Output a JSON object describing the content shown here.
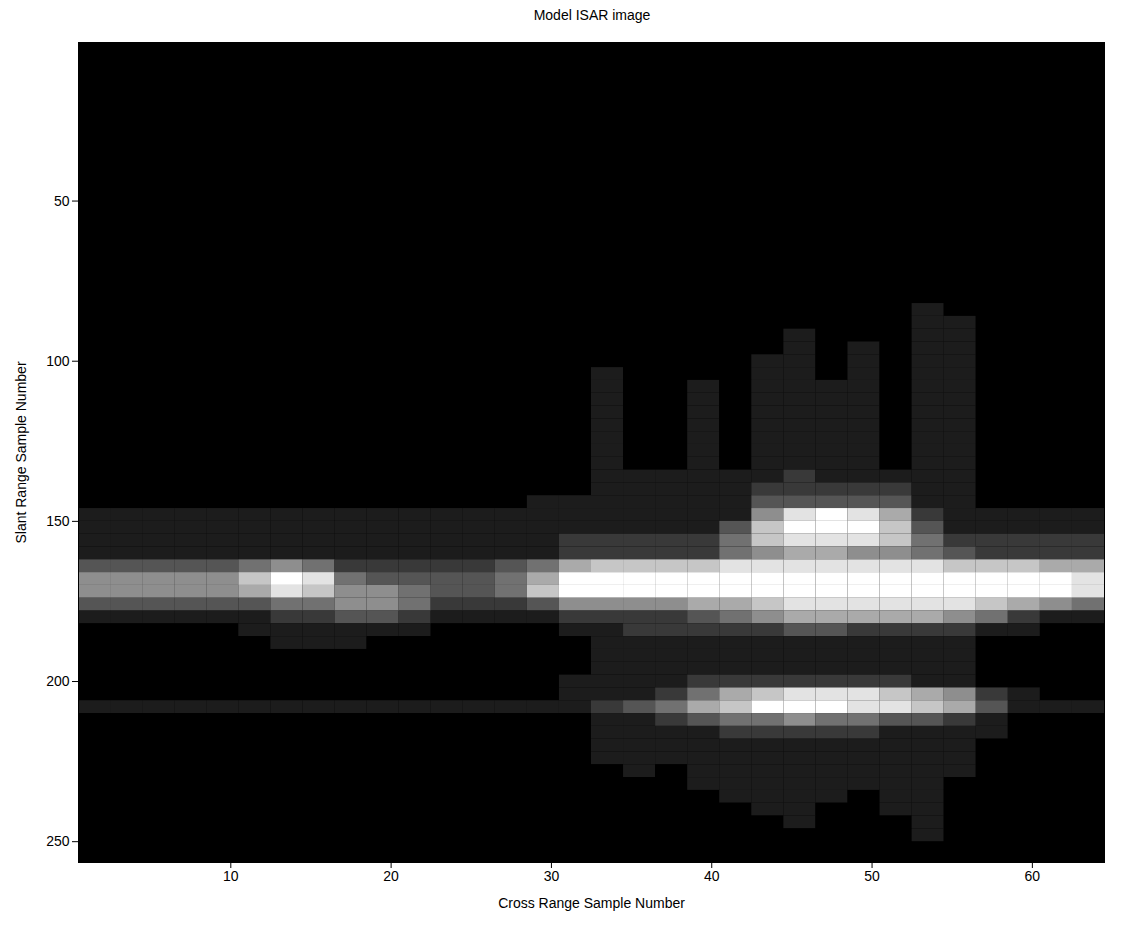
{
  "chart_data": {
    "type": "heatmap",
    "title": "Model ISAR image",
    "xlabel": "Cross Range Sample Number",
    "ylabel": "Slant Range Sample Number",
    "xlim": [
      0.5,
      64.5
    ],
    "xticks": [
      10,
      20,
      30,
      40,
      50,
      60
    ],
    "ylim": [
      0.5,
      256.5
    ],
    "yticks": [
      50,
      100,
      150,
      200,
      250
    ],
    "grid": false,
    "cells": {
      "clim": [
        0,
        9
      ],
      "x": [
        1.5,
        3.5,
        5.5,
        7.5,
        9.5,
        11.5,
        13.5,
        15.5,
        17.5,
        19.5,
        21.5,
        23.5,
        25.5,
        27.5,
        29.5,
        31.5,
        33.5,
        35.5,
        37.5,
        39.5,
        41.5,
        43.5,
        45.5,
        47.5,
        49.5,
        51.5,
        53.5,
        55.5,
        57.5,
        59.5,
        61.5,
        63.5
      ],
      "y": [
        84,
        88,
        92,
        96,
        100,
        104,
        108,
        112,
        116,
        120,
        124,
        128,
        132,
        136,
        140,
        144,
        148,
        152,
        156,
        160,
        164,
        168,
        172,
        176,
        180,
        184,
        188,
        192,
        196,
        200,
        204,
        208,
        212,
        216,
        220,
        224,
        228,
        232,
        236,
        240,
        244,
        248
      ],
      "values": [
        [
          0,
          0,
          0,
          0,
          0,
          0,
          0,
          0,
          0,
          0,
          0,
          0,
          0,
          0,
          0,
          0,
          0,
          0,
          0,
          0,
          0,
          0,
          0,
          0,
          0,
          0,
          1,
          0,
          0,
          0,
          0,
          0
        ],
        [
          0,
          0,
          0,
          0,
          0,
          0,
          0,
          0,
          0,
          0,
          0,
          0,
          0,
          0,
          0,
          0,
          0,
          0,
          0,
          0,
          0,
          0,
          0,
          0,
          0,
          0,
          1,
          1,
          0,
          0,
          0,
          0
        ],
        [
          0,
          0,
          0,
          0,
          0,
          0,
          0,
          0,
          0,
          0,
          0,
          0,
          0,
          0,
          0,
          0,
          0,
          0,
          0,
          0,
          0,
          0,
          1,
          0,
          0,
          0,
          1,
          1,
          0,
          0,
          0,
          0
        ],
        [
          0,
          0,
          0,
          0,
          0,
          0,
          0,
          0,
          0,
          0,
          0,
          0,
          0,
          0,
          0,
          0,
          0,
          0,
          0,
          0,
          0,
          0,
          1,
          0,
          1,
          0,
          1,
          1,
          0,
          0,
          0,
          0
        ],
        [
          0,
          0,
          0,
          0,
          0,
          0,
          0,
          0,
          0,
          0,
          0,
          0,
          0,
          0,
          0,
          0,
          0,
          0,
          0,
          0,
          0,
          1,
          1,
          0,
          1,
          0,
          1,
          1,
          0,
          0,
          0,
          0
        ],
        [
          0,
          0,
          0,
          0,
          0,
          0,
          0,
          0,
          0,
          0,
          0,
          0,
          0,
          0,
          0,
          0,
          1,
          0,
          0,
          0,
          0,
          1,
          1,
          0,
          1,
          0,
          1,
          1,
          0,
          0,
          0,
          0
        ],
        [
          0,
          0,
          0,
          0,
          0,
          0,
          0,
          0,
          0,
          0,
          0,
          0,
          0,
          0,
          0,
          0,
          1,
          0,
          0,
          1,
          0,
          1,
          1,
          1,
          1,
          0,
          1,
          1,
          0,
          0,
          0,
          0
        ],
        [
          0,
          0,
          0,
          0,
          0,
          0,
          0,
          0,
          0,
          0,
          0,
          0,
          0,
          0,
          0,
          0,
          1,
          0,
          0,
          1,
          0,
          1,
          1,
          1,
          1,
          0,
          1,
          1,
          0,
          0,
          0,
          0
        ],
        [
          0,
          0,
          0,
          0,
          0,
          0,
          0,
          0,
          0,
          0,
          0,
          0,
          0,
          0,
          0,
          0,
          1,
          0,
          0,
          1,
          0,
          1,
          1,
          1,
          1,
          0,
          1,
          1,
          0,
          0,
          0,
          0
        ],
        [
          0,
          0,
          0,
          0,
          0,
          0,
          0,
          0,
          0,
          0,
          0,
          0,
          0,
          0,
          0,
          0,
          1,
          0,
          0,
          1,
          0,
          1,
          1,
          1,
          1,
          0,
          1,
          1,
          0,
          0,
          0,
          0
        ],
        [
          0,
          0,
          0,
          0,
          0,
          0,
          0,
          0,
          0,
          0,
          0,
          0,
          0,
          0,
          0,
          0,
          1,
          0,
          0,
          1,
          0,
          1,
          1,
          1,
          1,
          0,
          1,
          1,
          0,
          0,
          0,
          0
        ],
        [
          0,
          0,
          0,
          0,
          0,
          0,
          0,
          0,
          0,
          0,
          0,
          0,
          0,
          0,
          0,
          0,
          1,
          0,
          0,
          1,
          0,
          1,
          1,
          1,
          1,
          0,
          1,
          1,
          0,
          0,
          0,
          0
        ],
        [
          0,
          0,
          0,
          0,
          0,
          0,
          0,
          0,
          0,
          0,
          0,
          0,
          0,
          0,
          0,
          0,
          1,
          0,
          0,
          1,
          0,
          1,
          1,
          1,
          1,
          0,
          1,
          1,
          0,
          0,
          0,
          0
        ],
        [
          0,
          0,
          0,
          0,
          0,
          0,
          0,
          0,
          0,
          0,
          0,
          0,
          0,
          0,
          0,
          0,
          1,
          1,
          1,
          1,
          1,
          1,
          2,
          1,
          1,
          1,
          1,
          1,
          0,
          0,
          0,
          0
        ],
        [
          0,
          0,
          0,
          0,
          0,
          0,
          0,
          0,
          0,
          0,
          0,
          0,
          0,
          0,
          0,
          0,
          1,
          1,
          1,
          1,
          1,
          2,
          2,
          2,
          2,
          2,
          1,
          1,
          0,
          0,
          0,
          0
        ],
        [
          0,
          0,
          0,
          0,
          0,
          0,
          0,
          0,
          0,
          0,
          0,
          0,
          0,
          0,
          1,
          1,
          1,
          1,
          1,
          1,
          1,
          3,
          3,
          3,
          3,
          3,
          1,
          1,
          0,
          0,
          0,
          0
        ],
        [
          1,
          1,
          1,
          1,
          1,
          1,
          1,
          1,
          1,
          1,
          1,
          1,
          1,
          1,
          1,
          1,
          1,
          1,
          1,
          1,
          1,
          5,
          8,
          9,
          8,
          6,
          2,
          1,
          1,
          1,
          1,
          1
        ],
        [
          1,
          1,
          1,
          1,
          1,
          1,
          1,
          1,
          1,
          1,
          1,
          1,
          1,
          1,
          1,
          1,
          1,
          1,
          1,
          1,
          3,
          7,
          9,
          9,
          9,
          7,
          3,
          1,
          1,
          1,
          1,
          1
        ],
        [
          1,
          1,
          1,
          1,
          1,
          1,
          1,
          1,
          1,
          1,
          1,
          1,
          1,
          1,
          1,
          2,
          2,
          2,
          2,
          2,
          4,
          7,
          8,
          8,
          8,
          7,
          4,
          2,
          2,
          2,
          2,
          2
        ],
        [
          1,
          1,
          1,
          1,
          1,
          1,
          1,
          1,
          1,
          1,
          1,
          1,
          1,
          1,
          1,
          2,
          2,
          2,
          2,
          2,
          4,
          5,
          6,
          6,
          5,
          5,
          4,
          3,
          2,
          2,
          2,
          2
        ],
        [
          3,
          3,
          3,
          3,
          3,
          4,
          5,
          4,
          2,
          2,
          2,
          2,
          2,
          3,
          4,
          6,
          7,
          7,
          7,
          7,
          8,
          8,
          8,
          8,
          8,
          8,
          8,
          7,
          7,
          7,
          6,
          6
        ],
        [
          5,
          5,
          5,
          5,
          5,
          7,
          9,
          8,
          4,
          3,
          3,
          3,
          3,
          4,
          6,
          9,
          9,
          9,
          9,
          9,
          9,
          9,
          9,
          9,
          9,
          9,
          9,
          9,
          9,
          9,
          9,
          8
        ],
        [
          5,
          5,
          5,
          5,
          5,
          6,
          8,
          7,
          5,
          5,
          4,
          3,
          3,
          4,
          7,
          9,
          9,
          9,
          9,
          9,
          9,
          9,
          9,
          9,
          9,
          9,
          9,
          9,
          9,
          9,
          9,
          8
        ],
        [
          3,
          3,
          3,
          3,
          3,
          3,
          4,
          4,
          5,
          5,
          4,
          2,
          2,
          2,
          3,
          5,
          5,
          5,
          5,
          6,
          6,
          7,
          8,
          8,
          8,
          8,
          8,
          8,
          7,
          6,
          5,
          4
        ],
        [
          1,
          1,
          1,
          1,
          1,
          1,
          2,
          2,
          3,
          3,
          2,
          1,
          1,
          1,
          1,
          2,
          2,
          2,
          2,
          3,
          4,
          5,
          6,
          6,
          6,
          6,
          6,
          5,
          4,
          2,
          1,
          1
        ],
        [
          0,
          0,
          0,
          0,
          0,
          1,
          1,
          1,
          1,
          1,
          1,
          0,
          0,
          0,
          0,
          1,
          1,
          2,
          2,
          2,
          2,
          2,
          3,
          3,
          2,
          2,
          2,
          2,
          1,
          1,
          0,
          0
        ],
        [
          0,
          0,
          0,
          0,
          0,
          0,
          1,
          1,
          1,
          0,
          0,
          0,
          0,
          0,
          0,
          0,
          1,
          1,
          1,
          1,
          1,
          1,
          1,
          1,
          1,
          1,
          1,
          1,
          0,
          0,
          0,
          0
        ],
        [
          0,
          0,
          0,
          0,
          0,
          0,
          0,
          0,
          0,
          0,
          0,
          0,
          0,
          0,
          0,
          0,
          1,
          1,
          1,
          1,
          1,
          1,
          1,
          1,
          1,
          1,
          1,
          1,
          0,
          0,
          0,
          0
        ],
        [
          0,
          0,
          0,
          0,
          0,
          0,
          0,
          0,
          0,
          0,
          0,
          0,
          0,
          0,
          0,
          0,
          1,
          1,
          1,
          1,
          1,
          1,
          1,
          1,
          1,
          1,
          1,
          1,
          0,
          0,
          0,
          0
        ],
        [
          0,
          0,
          0,
          0,
          0,
          0,
          0,
          0,
          0,
          0,
          0,
          0,
          0,
          0,
          0,
          1,
          1,
          1,
          1,
          2,
          2,
          2,
          2,
          2,
          2,
          2,
          1,
          1,
          0,
          0,
          0,
          0
        ],
        [
          0,
          0,
          0,
          0,
          0,
          0,
          0,
          0,
          0,
          0,
          0,
          0,
          0,
          0,
          0,
          1,
          1,
          1,
          2,
          4,
          6,
          7,
          8,
          8,
          8,
          7,
          6,
          5,
          2,
          1,
          0,
          0
        ],
        [
          1,
          1,
          1,
          1,
          1,
          1,
          1,
          1,
          1,
          1,
          1,
          1,
          1,
          1,
          1,
          1,
          2,
          3,
          4,
          6,
          7,
          9,
          9,
          9,
          8,
          8,
          7,
          6,
          3,
          1,
          1,
          1
        ],
        [
          0,
          0,
          0,
          0,
          0,
          0,
          0,
          0,
          0,
          0,
          0,
          0,
          0,
          0,
          0,
          0,
          1,
          1,
          2,
          3,
          4,
          4,
          5,
          4,
          4,
          3,
          3,
          2,
          1,
          0,
          0,
          0
        ],
        [
          0,
          0,
          0,
          0,
          0,
          0,
          0,
          0,
          0,
          0,
          0,
          0,
          0,
          0,
          0,
          0,
          1,
          1,
          1,
          1,
          2,
          2,
          2,
          2,
          2,
          1,
          1,
          1,
          1,
          0,
          0,
          0
        ],
        [
          0,
          0,
          0,
          0,
          0,
          0,
          0,
          0,
          0,
          0,
          0,
          0,
          0,
          0,
          0,
          0,
          1,
          1,
          1,
          1,
          1,
          1,
          1,
          1,
          1,
          1,
          1,
          1,
          0,
          0,
          0,
          0
        ],
        [
          0,
          0,
          0,
          0,
          0,
          0,
          0,
          0,
          0,
          0,
          0,
          0,
          0,
          0,
          0,
          0,
          1,
          1,
          1,
          1,
          1,
          1,
          1,
          1,
          1,
          1,
          1,
          1,
          0,
          0,
          0,
          0
        ],
        [
          0,
          0,
          0,
          0,
          0,
          0,
          0,
          0,
          0,
          0,
          0,
          0,
          0,
          0,
          0,
          0,
          0,
          1,
          0,
          1,
          1,
          1,
          1,
          1,
          1,
          1,
          1,
          1,
          0,
          0,
          0,
          0
        ],
        [
          0,
          0,
          0,
          0,
          0,
          0,
          0,
          0,
          0,
          0,
          0,
          0,
          0,
          0,
          0,
          0,
          0,
          0,
          0,
          1,
          1,
          1,
          1,
          1,
          1,
          1,
          1,
          0,
          0,
          0,
          0,
          0
        ],
        [
          0,
          0,
          0,
          0,
          0,
          0,
          0,
          0,
          0,
          0,
          0,
          0,
          0,
          0,
          0,
          0,
          0,
          0,
          0,
          0,
          1,
          1,
          1,
          1,
          0,
          1,
          1,
          0,
          0,
          0,
          0,
          0
        ],
        [
          0,
          0,
          0,
          0,
          0,
          0,
          0,
          0,
          0,
          0,
          0,
          0,
          0,
          0,
          0,
          0,
          0,
          0,
          0,
          0,
          0,
          1,
          1,
          0,
          0,
          1,
          1,
          0,
          0,
          0,
          0,
          0
        ],
        [
          0,
          0,
          0,
          0,
          0,
          0,
          0,
          0,
          0,
          0,
          0,
          0,
          0,
          0,
          0,
          0,
          0,
          0,
          0,
          0,
          0,
          0,
          1,
          0,
          0,
          0,
          1,
          0,
          0,
          0,
          0,
          0
        ],
        [
          0,
          0,
          0,
          0,
          0,
          0,
          0,
          0,
          0,
          0,
          0,
          0,
          0,
          0,
          0,
          0,
          0,
          0,
          0,
          0,
          0,
          0,
          0,
          0,
          0,
          0,
          1,
          0,
          0,
          0,
          0,
          0
        ]
      ]
    }
  }
}
